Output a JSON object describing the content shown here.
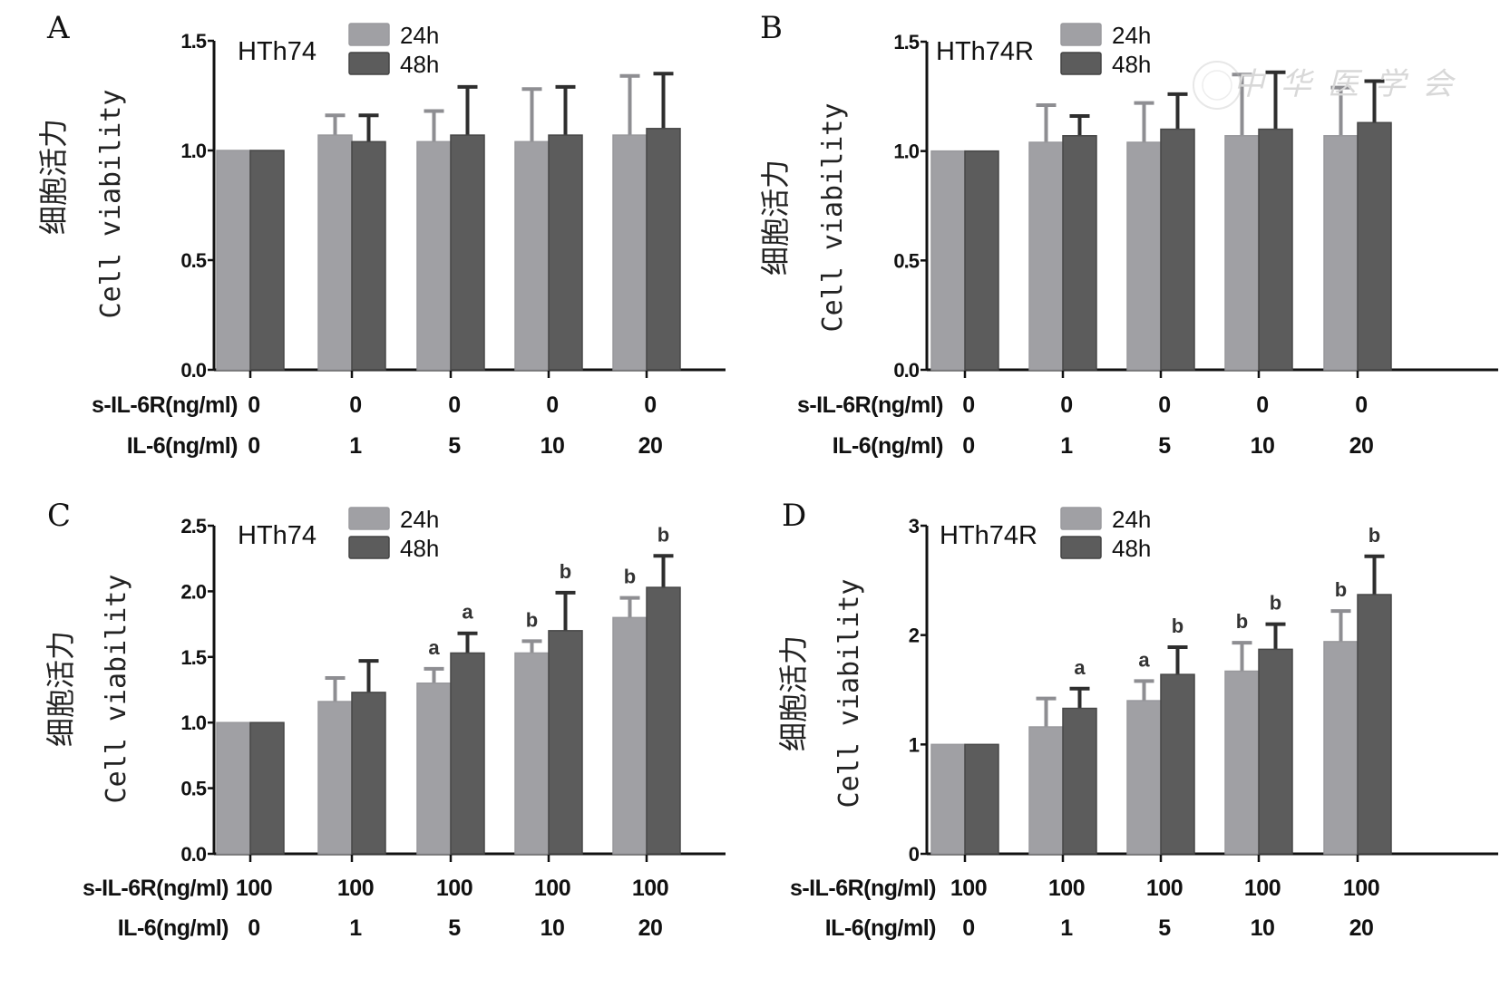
{
  "chart_data": [
    {
      "type": "bar",
      "panel": "A",
      "cell_line": "HTh74",
      "ylabel_cn": "细胞活力",
      "ylabel": "Cell viability",
      "ylim": [
        0,
        1.5
      ],
      "yticks": [
        "0.0",
        "0.5",
        "1.0",
        "1.5"
      ],
      "ytick_values": [
        0,
        0.5,
        1.0,
        1.5
      ],
      "row_labels": [
        "s-IL-6R(ng/ml)",
        "IL-6(ng/ml)"
      ],
      "categories_sIL6R": [
        "0",
        "0",
        "0",
        "0",
        "0"
      ],
      "categories_IL6": [
        "0",
        "1",
        "5",
        "10",
        "20"
      ],
      "legend": [
        "24h",
        "48h"
      ],
      "legend_placement": "top-left",
      "series": [
        {
          "name": "24h",
          "color": "#a0a0a4",
          "values": [
            1.0,
            1.07,
            1.04,
            1.04,
            1.07
          ],
          "error_top": [
            null,
            1.16,
            1.18,
            1.28,
            1.34
          ],
          "annotations": [
            "",
            "",
            "",
            "",
            ""
          ]
        },
        {
          "name": "48h",
          "color": "#5c5c5c",
          "values": [
            1.0,
            1.04,
            1.07,
            1.07,
            1.1
          ],
          "error_top": [
            null,
            1.16,
            1.29,
            1.29,
            1.35
          ],
          "annotations": [
            "",
            "",
            "",
            "",
            ""
          ]
        }
      ]
    },
    {
      "type": "bar",
      "panel": "B",
      "cell_line": "HTh74R",
      "ylabel_cn": "细胞活力",
      "ylabel": "Cell viability",
      "ylim": [
        0,
        1.5
      ],
      "yticks": [
        "0.0",
        "0.5",
        "1.0",
        "1.5"
      ],
      "ytick_values": [
        0,
        0.5,
        1.0,
        1.5
      ],
      "row_labels": [
        "s-IL-6R(ng/ml)",
        "IL-6(ng/ml)"
      ],
      "categories_sIL6R": [
        "0",
        "0",
        "0",
        "0",
        "0"
      ],
      "categories_IL6": [
        "0",
        "1",
        "5",
        "10",
        "20"
      ],
      "legend": [
        "24h",
        "48h"
      ],
      "legend_placement": "top-left",
      "series": [
        {
          "name": "24h",
          "color": "#a0a0a4",
          "values": [
            1.0,
            1.04,
            1.04,
            1.07,
            1.07
          ],
          "error_top": [
            null,
            1.21,
            1.22,
            1.35,
            1.29
          ],
          "annotations": [
            "",
            "",
            "",
            "",
            ""
          ]
        },
        {
          "name": "48h",
          "color": "#5c5c5c",
          "values": [
            1.0,
            1.07,
            1.1,
            1.1,
            1.13
          ],
          "error_top": [
            null,
            1.16,
            1.26,
            1.36,
            1.32
          ],
          "annotations": [
            "",
            "",
            "",
            "",
            ""
          ]
        }
      ]
    },
    {
      "type": "bar",
      "panel": "C",
      "cell_line": "HTh74",
      "ylabel_cn": "细胞活力",
      "ylabel": "Cell viability",
      "ylim": [
        0,
        2.5
      ],
      "yticks": [
        "0.0",
        "0.5",
        "1.0",
        "1.5",
        "2.0",
        "2.5"
      ],
      "ytick_values": [
        0,
        0.5,
        1.0,
        1.5,
        2.0,
        2.5
      ],
      "row_labels": [
        "s-IL-6R(ng/ml)",
        "IL-6(ng/ml)"
      ],
      "categories_sIL6R": [
        "100",
        "100",
        "100",
        "100",
        "100"
      ],
      "categories_IL6": [
        "0",
        "1",
        "5",
        "10",
        "20"
      ],
      "legend": [
        "24h",
        "48h"
      ],
      "legend_placement": "top-left",
      "series": [
        {
          "name": "24h",
          "color": "#a0a0a4",
          "values": [
            1.0,
            1.16,
            1.3,
            1.53,
            1.8
          ],
          "error_top": [
            null,
            1.34,
            1.41,
            1.62,
            1.95
          ],
          "annotations": [
            "",
            "",
            "a",
            "b",
            "b"
          ]
        },
        {
          "name": "48h",
          "color": "#5c5c5c",
          "values": [
            1.0,
            1.23,
            1.53,
            1.7,
            2.03
          ],
          "error_top": [
            null,
            1.47,
            1.68,
            1.99,
            2.27
          ],
          "annotations": [
            "",
            "",
            "a",
            "b",
            "b"
          ]
        }
      ]
    },
    {
      "type": "bar",
      "panel": "D",
      "cell_line": "HTh74R",
      "ylabel_cn": "细胞活力",
      "ylabel": "Cell viability",
      "ylim": [
        0,
        3
      ],
      "yticks": [
        "0",
        "1",
        "2",
        "3"
      ],
      "ytick_values": [
        0,
        1,
        2,
        3
      ],
      "row_labels": [
        "s-IL-6R(ng/ml)",
        "IL-6(ng/ml)"
      ],
      "categories_sIL6R": [
        "100",
        "100",
        "100",
        "100",
        "100"
      ],
      "categories_IL6": [
        "0",
        "1",
        "5",
        "10",
        "20"
      ],
      "legend": [
        "24h",
        "48h"
      ],
      "legend_placement": "top-left",
      "series": [
        {
          "name": "24h",
          "color": "#a0a0a4",
          "values": [
            1.0,
            1.16,
            1.4,
            1.67,
            1.94
          ],
          "error_top": [
            null,
            1.42,
            1.58,
            1.93,
            2.22
          ],
          "annotations": [
            "",
            "",
            "a",
            "b",
            "b"
          ]
        },
        {
          "name": "48h",
          "color": "#5c5c5c",
          "values": [
            1.0,
            1.33,
            1.64,
            1.87,
            2.37
          ],
          "error_top": [
            null,
            1.51,
            1.89,
            2.1,
            2.72
          ],
          "annotations": [
            "",
            "a",
            "b",
            "b",
            "b"
          ]
        }
      ]
    }
  ],
  "watermark": "中华医学会"
}
